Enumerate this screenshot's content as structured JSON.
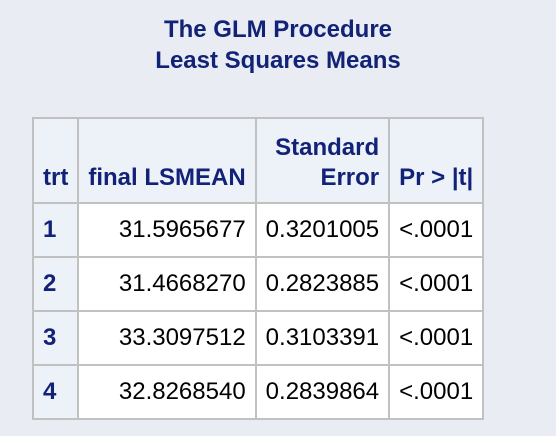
{
  "titles": {
    "line1": "The GLM Procedure",
    "line2": "Least Squares Means"
  },
  "table": {
    "headers": {
      "trt": "trt",
      "lsmean": "final LSMEAN",
      "se_line1": "Standard",
      "se_line2": "Error",
      "p": "Pr > |t|"
    },
    "rows": [
      {
        "trt": "1",
        "lsmean": "31.5965677",
        "se": "0.3201005",
        "p": "<.0001"
      },
      {
        "trt": "2",
        "lsmean": "31.4668270",
        "se": "0.2823885",
        "p": "<.0001"
      },
      {
        "trt": "3",
        "lsmean": "33.3097512",
        "se": "0.3103391",
        "p": "<.0001"
      },
      {
        "trt": "4",
        "lsmean": "32.8268540",
        "se": "0.2839864",
        "p": "<.0001"
      }
    ]
  },
  "colors": {
    "background": "#eaecf4",
    "header_text": "#112277",
    "header_bg": "#edf2f9",
    "grid": "#c1c1c1"
  }
}
